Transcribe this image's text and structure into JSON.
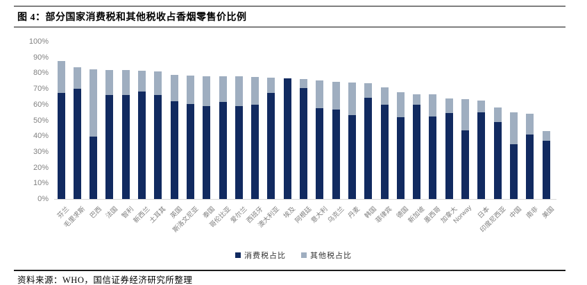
{
  "figure": {
    "title": "图 4：部分国家消费税和其他税收占香烟零售价比例",
    "source": "资料来源：WHO，国信证券经济研究所整理"
  },
  "colors": {
    "excise_bar": "#112A60",
    "other_bar": "#9FAEC0",
    "axis_text": "#808080",
    "rule_gray": "#7F7F7F",
    "rule_black": "#1A1A1A"
  },
  "chart_data": {
    "type": "bar",
    "stacked": true,
    "title": "部分国家消费税和其他税收占香烟零售价比例",
    "categories": [
      "芬兰",
      "毛里求斯",
      "巴西",
      "法国",
      "智利",
      "新西兰",
      "土耳其",
      "英国",
      "斯洛文尼亚",
      "泰国",
      "哥伦比亚",
      "爱尔兰",
      "西班牙",
      "澳大利亚",
      "埃及",
      "阿根廷",
      "意大利",
      "乌克兰",
      "丹麦",
      "韩国",
      "菲律宾",
      "德国",
      "新加坡",
      "墨西哥",
      "加拿大",
      "Norway",
      "日本",
      "印度尼西亚",
      "中国",
      "南非",
      "美国"
    ],
    "series": [
      {
        "name": "消费税占比",
        "color": "#112A60",
        "values": [
          67.5,
          70,
          39.5,
          66,
          66,
          68.5,
          66,
          62,
          60.5,
          59,
          61.5,
          59,
          60,
          67.5,
          76.5,
          70.5,
          57.5,
          57,
          53.5,
          64.5,
          60,
          52,
          60,
          52.5,
          54.5,
          43.5,
          55,
          49,
          35,
          41,
          37
        ]
      },
      {
        "name": "其他税占比",
        "color": "#9FAEC0",
        "values": [
          20,
          13.5,
          43,
          16,
          16,
          13,
          15,
          17,
          18,
          19,
          16.5,
          19,
          17.5,
          9.5,
          0,
          5.5,
          18,
          17.5,
          20.5,
          9,
          11,
          16,
          6.5,
          14,
          9.5,
          20,
          7.5,
          9,
          20,
          13,
          6
        ]
      }
    ],
    "xlabel": "",
    "ylabel": "",
    "ylim": [
      0,
      100
    ],
    "yticks": [
      "0%",
      "10%",
      "20%",
      "30%",
      "40%",
      "50%",
      "60%",
      "70%",
      "80%",
      "90%",
      "100%"
    ],
    "grid": false,
    "legend_position": "bottom"
  }
}
